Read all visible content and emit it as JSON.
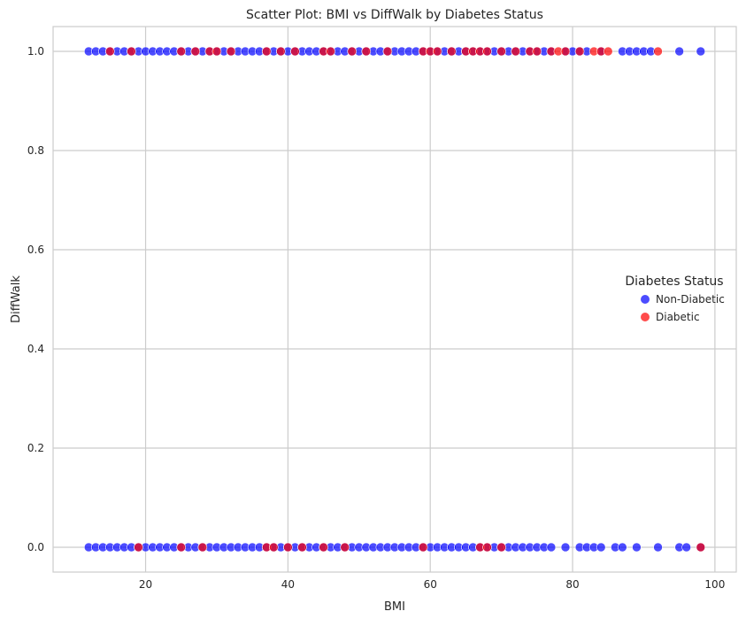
{
  "chart_data": {
    "type": "scatter",
    "title": "Scatter Plot: BMI vs DiffWalk by Diabetes Status",
    "xlabel": "BMI",
    "ylabel": "DiffWalk",
    "xlim": [
      7,
      103
    ],
    "ylim": [
      -0.05,
      1.05
    ],
    "xticks": [
      20,
      40,
      60,
      80,
      100
    ],
    "xtick_labels": [
      "20",
      "40",
      "60",
      "80",
      "100"
    ],
    "yticks": [
      0.0,
      0.2,
      0.4,
      0.6,
      0.8,
      1.0
    ],
    "ytick_labels": [
      "0.0",
      "0.2",
      "0.4",
      "0.6",
      "0.8",
      "1.0"
    ],
    "grid": true,
    "legend": {
      "title": "Diabetes Status",
      "placement": "center-right"
    },
    "colors": {
      "Non-Diabetic": "#0000ff",
      "Diabetic": "#ff0000"
    },
    "series": [
      {
        "name": "Non-Diabetic",
        "points": [
          [
            12,
            0
          ],
          [
            13,
            0
          ],
          [
            14,
            0
          ],
          [
            15,
            0
          ],
          [
            16,
            0
          ],
          [
            17,
            0
          ],
          [
            18,
            0
          ],
          [
            19,
            0
          ],
          [
            20,
            0
          ],
          [
            21,
            0
          ],
          [
            22,
            0
          ],
          [
            23,
            0
          ],
          [
            24,
            0
          ],
          [
            25,
            0
          ],
          [
            26,
            0
          ],
          [
            27,
            0
          ],
          [
            28,
            0
          ],
          [
            29,
            0
          ],
          [
            30,
            0
          ],
          [
            31,
            0
          ],
          [
            32,
            0
          ],
          [
            33,
            0
          ],
          [
            34,
            0
          ],
          [
            35,
            0
          ],
          [
            36,
            0
          ],
          [
            37,
            0
          ],
          [
            38,
            0
          ],
          [
            39,
            0
          ],
          [
            40,
            0
          ],
          [
            41,
            0
          ],
          [
            42,
            0
          ],
          [
            43,
            0
          ],
          [
            44,
            0
          ],
          [
            45,
            0
          ],
          [
            46,
            0
          ],
          [
            47,
            0
          ],
          [
            48,
            0
          ],
          [
            49,
            0
          ],
          [
            50,
            0
          ],
          [
            51,
            0
          ],
          [
            52,
            0
          ],
          [
            53,
            0
          ],
          [
            54,
            0
          ],
          [
            55,
            0
          ],
          [
            56,
            0
          ],
          [
            57,
            0
          ],
          [
            58,
            0
          ],
          [
            59,
            0
          ],
          [
            60,
            0
          ],
          [
            61,
            0
          ],
          [
            62,
            0
          ],
          [
            63,
            0
          ],
          [
            64,
            0
          ],
          [
            65,
            0
          ],
          [
            66,
            0
          ],
          [
            67,
            0
          ],
          [
            68,
            0
          ],
          [
            69,
            0
          ],
          [
            70,
            0
          ],
          [
            71,
            0
          ],
          [
            72,
            0
          ],
          [
            73,
            0
          ],
          [
            74,
            0
          ],
          [
            75,
            0
          ],
          [
            76,
            0
          ],
          [
            77,
            0
          ],
          [
            79,
            0
          ],
          [
            81,
            0
          ],
          [
            82,
            0
          ],
          [
            83,
            0
          ],
          [
            84,
            0
          ],
          [
            86,
            0
          ],
          [
            87,
            0
          ],
          [
            89,
            0
          ],
          [
            92,
            0
          ],
          [
            95,
            0
          ],
          [
            96,
            0
          ],
          [
            98,
            0
          ],
          [
            12,
            1
          ],
          [
            13,
            1
          ],
          [
            14,
            1
          ],
          [
            15,
            1
          ],
          [
            16,
            1
          ],
          [
            17,
            1
          ],
          [
            18,
            1
          ],
          [
            19,
            1
          ],
          [
            20,
            1
          ],
          [
            21,
            1
          ],
          [
            22,
            1
          ],
          [
            23,
            1
          ],
          [
            24,
            1
          ],
          [
            25,
            1
          ],
          [
            26,
            1
          ],
          [
            27,
            1
          ],
          [
            28,
            1
          ],
          [
            29,
            1
          ],
          [
            30,
            1
          ],
          [
            31,
            1
          ],
          [
            32,
            1
          ],
          [
            33,
            1
          ],
          [
            34,
            1
          ],
          [
            35,
            1
          ],
          [
            36,
            1
          ],
          [
            37,
            1
          ],
          [
            38,
            1
          ],
          [
            39,
            1
          ],
          [
            40,
            1
          ],
          [
            41,
            1
          ],
          [
            42,
            1
          ],
          [
            43,
            1
          ],
          [
            44,
            1
          ],
          [
            45,
            1
          ],
          [
            46,
            1
          ],
          [
            47,
            1
          ],
          [
            48,
            1
          ],
          [
            49,
            1
          ],
          [
            50,
            1
          ],
          [
            51,
            1
          ],
          [
            52,
            1
          ],
          [
            53,
            1
          ],
          [
            54,
            1
          ],
          [
            55,
            1
          ],
          [
            56,
            1
          ],
          [
            57,
            1
          ],
          [
            58,
            1
          ],
          [
            59,
            1
          ],
          [
            60,
            1
          ],
          [
            61,
            1
          ],
          [
            62,
            1
          ],
          [
            63,
            1
          ],
          [
            64,
            1
          ],
          [
            65,
            1
          ],
          [
            66,
            1
          ],
          [
            67,
            1
          ],
          [
            68,
            1
          ],
          [
            69,
            1
          ],
          [
            70,
            1
          ],
          [
            71,
            1
          ],
          [
            72,
            1
          ],
          [
            73,
            1
          ],
          [
            74,
            1
          ],
          [
            75,
            1
          ],
          [
            76,
            1
          ],
          [
            77,
            1
          ],
          [
            79,
            1
          ],
          [
            80,
            1
          ],
          [
            81,
            1
          ],
          [
            82,
            1
          ],
          [
            84,
            1
          ],
          [
            87,
            1
          ],
          [
            88,
            1
          ],
          [
            89,
            1
          ],
          [
            90,
            1
          ],
          [
            91,
            1
          ],
          [
            95,
            1
          ],
          [
            98,
            1
          ]
        ]
      },
      {
        "name": "Diabetic",
        "points": [
          [
            19,
            0
          ],
          [
            25,
            0
          ],
          [
            28,
            0
          ],
          [
            37,
            0
          ],
          [
            38,
            0
          ],
          [
            40,
            0
          ],
          [
            42,
            0
          ],
          [
            45,
            0
          ],
          [
            48,
            0
          ],
          [
            59,
            0
          ],
          [
            67,
            0
          ],
          [
            68,
            0
          ],
          [
            70,
            0
          ],
          [
            98,
            0
          ],
          [
            15,
            1
          ],
          [
            18,
            1
          ],
          [
            25,
            1
          ],
          [
            27,
            1
          ],
          [
            29,
            1
          ],
          [
            30,
            1
          ],
          [
            32,
            1
          ],
          [
            37,
            1
          ],
          [
            39,
            1
          ],
          [
            41,
            1
          ],
          [
            45,
            1
          ],
          [
            46,
            1
          ],
          [
            49,
            1
          ],
          [
            51,
            1
          ],
          [
            54,
            1
          ],
          [
            59,
            1
          ],
          [
            60,
            1
          ],
          [
            61,
            1
          ],
          [
            63,
            1
          ],
          [
            65,
            1
          ],
          [
            66,
            1
          ],
          [
            67,
            1
          ],
          [
            68,
            1
          ],
          [
            70,
            1
          ],
          [
            72,
            1
          ],
          [
            74,
            1
          ],
          [
            75,
            1
          ],
          [
            77,
            1
          ],
          [
            78,
            1
          ],
          [
            79,
            1
          ],
          [
            81,
            1
          ],
          [
            83,
            1
          ],
          [
            84,
            1
          ],
          [
            85,
            1
          ],
          [
            92,
            1
          ]
        ]
      }
    ]
  }
}
